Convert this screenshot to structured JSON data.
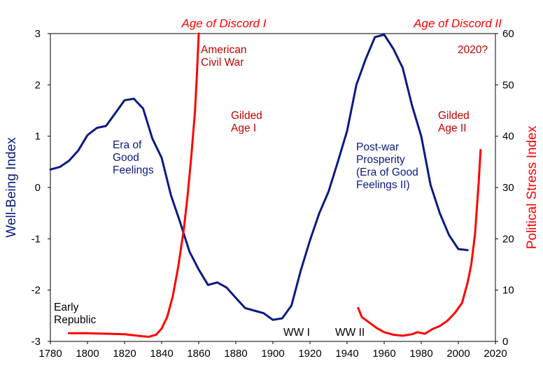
{
  "chart_data": {
    "type": "line",
    "title": "",
    "xlabel": "",
    "x_ticks": [
      1780,
      1800,
      1820,
      1840,
      1860,
      1880,
      1900,
      1920,
      1940,
      1960,
      1980,
      2000,
      2020
    ],
    "xlim": [
      1780,
      2020
    ],
    "left_axis": {
      "label": "Well-Being Index",
      "range": [
        -3,
        3
      ],
      "ticks": [
        -3,
        -2,
        -1,
        0,
        1,
        2,
        3
      ],
      "color": "#0a1a80"
    },
    "right_axis": {
      "label": "Political Stress Index",
      "range": [
        0,
        60
      ],
      "ticks": [
        0,
        10,
        20,
        30,
        40,
        50,
        60
      ],
      "color": "#ff0000"
    },
    "series": [
      {
        "name": "Well-Being Index",
        "axis": "left",
        "color": "#0a1a80",
        "x": [
          1780,
          1785,
          1790,
          1795,
          1800,
          1805,
          1810,
          1815,
          1820,
          1825,
          1830,
          1835,
          1840,
          1845,
          1850,
          1855,
          1860,
          1865,
          1870,
          1875,
          1880,
          1885,
          1890,
          1895,
          1900,
          1905,
          1910,
          1915,
          1920,
          1925,
          1930,
          1935,
          1940,
          1945,
          1950,
          1955,
          1960,
          1965,
          1970,
          1975,
          1980,
          1985,
          1990,
          1995,
          2000,
          2005
        ],
        "values": [
          0.35,
          0.4,
          0.52,
          0.72,
          1.02,
          1.16,
          1.2,
          1.45,
          1.7,
          1.73,
          1.54,
          0.95,
          0.58,
          -0.15,
          -0.68,
          -1.25,
          -1.6,
          -1.9,
          -1.85,
          -1.95,
          -2.15,
          -2.35,
          -2.4,
          -2.45,
          -2.58,
          -2.55,
          -2.3,
          -1.62,
          -1.03,
          -0.5,
          -0.08,
          0.5,
          1.1,
          2.0,
          2.5,
          2.93,
          2.98,
          2.7,
          2.33,
          1.6,
          1.0,
          0.05,
          -0.5,
          -0.93,
          -1.2,
          -1.22
        ]
      },
      {
        "name": "Political Stress Index (Age of Discord I)",
        "axis": "right",
        "color": "#ff0000",
        "x": [
          1790,
          1800,
          1810,
          1820,
          1825,
          1830,
          1833,
          1837,
          1840,
          1843,
          1846,
          1849,
          1852,
          1854,
          1856,
          1858,
          1859,
          1860
        ],
        "values": [
          1.6,
          1.6,
          1.5,
          1.4,
          1.2,
          1.0,
          0.9,
          1.3,
          2.5,
          4.8,
          8.8,
          14.6,
          22.0,
          28.4,
          36.1,
          44.9,
          52.0,
          60.0
        ]
      },
      {
        "name": "Political Stress Index (Age of Discord II)",
        "axis": "right",
        "color": "#ff0000",
        "x": [
          1946,
          1948,
          1950,
          1953,
          1956,
          1960,
          1965,
          1970,
          1975,
          1978,
          1982,
          1986,
          1990,
          1994,
          1998,
          2002,
          2005,
          2007,
          2009,
          2011,
          2012
        ],
        "values": [
          6.5,
          4.7,
          4.2,
          3.4,
          2.6,
          1.8,
          1.3,
          1.1,
          1.4,
          1.8,
          1.5,
          2.4,
          3.0,
          4.0,
          5.5,
          7.5,
          11.5,
          15.0,
          21.0,
          31.0,
          37.3
        ]
      }
    ],
    "annotations": {
      "age_of_discord_1": "Age of Discord I",
      "age_of_discord_2": "Age of Discord II",
      "civil_war": [
        "American",
        "Civil War"
      ],
      "year_2020": "2020?",
      "gilded_age_1": [
        "Gilded",
        "Age I"
      ],
      "gilded_age_2": [
        "Gilded",
        "Age II"
      ],
      "era_good_feelings": [
        "Era of",
        "Good",
        "Feelings"
      ],
      "post_war": [
        "Post-war",
        "Prosperity",
        "(Era of Good",
        "Feelings II)"
      ],
      "early_republic": [
        "Early",
        "Republic"
      ],
      "ww1": "WW I",
      "ww2": "WW II"
    }
  }
}
